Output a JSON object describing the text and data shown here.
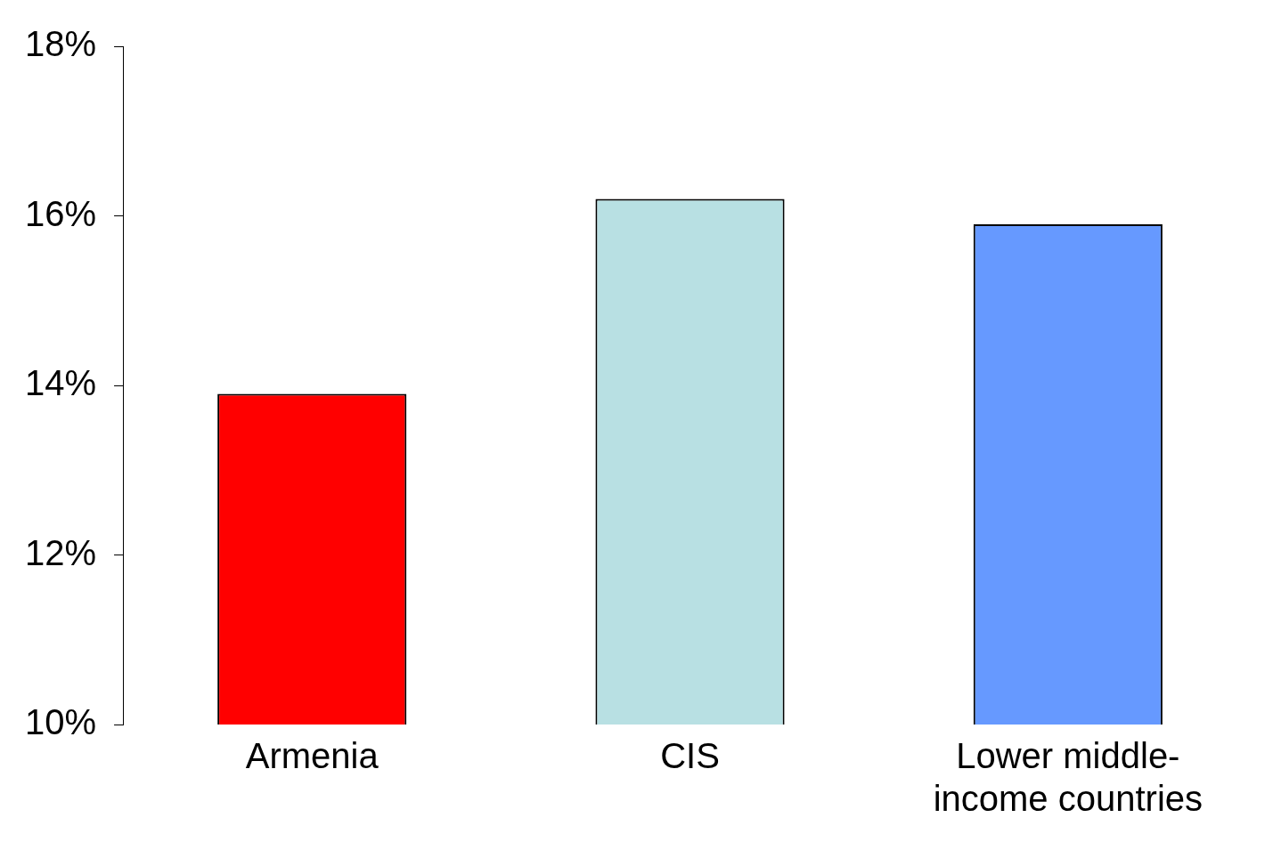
{
  "chart_data": {
    "type": "bar",
    "categories": [
      "Armenia",
      "CIS",
      "Lower middle-income countries"
    ],
    "values": [
      13.9,
      16.2,
      15.9
    ],
    "colors": [
      "#ff0000",
      "#b8e0e3",
      "#6699ff"
    ],
    "ylim": [
      10,
      18
    ],
    "yticks": [
      {
        "value": 10,
        "label": "10%"
      },
      {
        "value": 12,
        "label": "12%"
      },
      {
        "value": 14,
        "label": "14%"
      },
      {
        "value": 16,
        "label": "16%"
      },
      {
        "value": 18,
        "label": "18%"
      }
    ],
    "grid": false,
    "legend": false
  }
}
